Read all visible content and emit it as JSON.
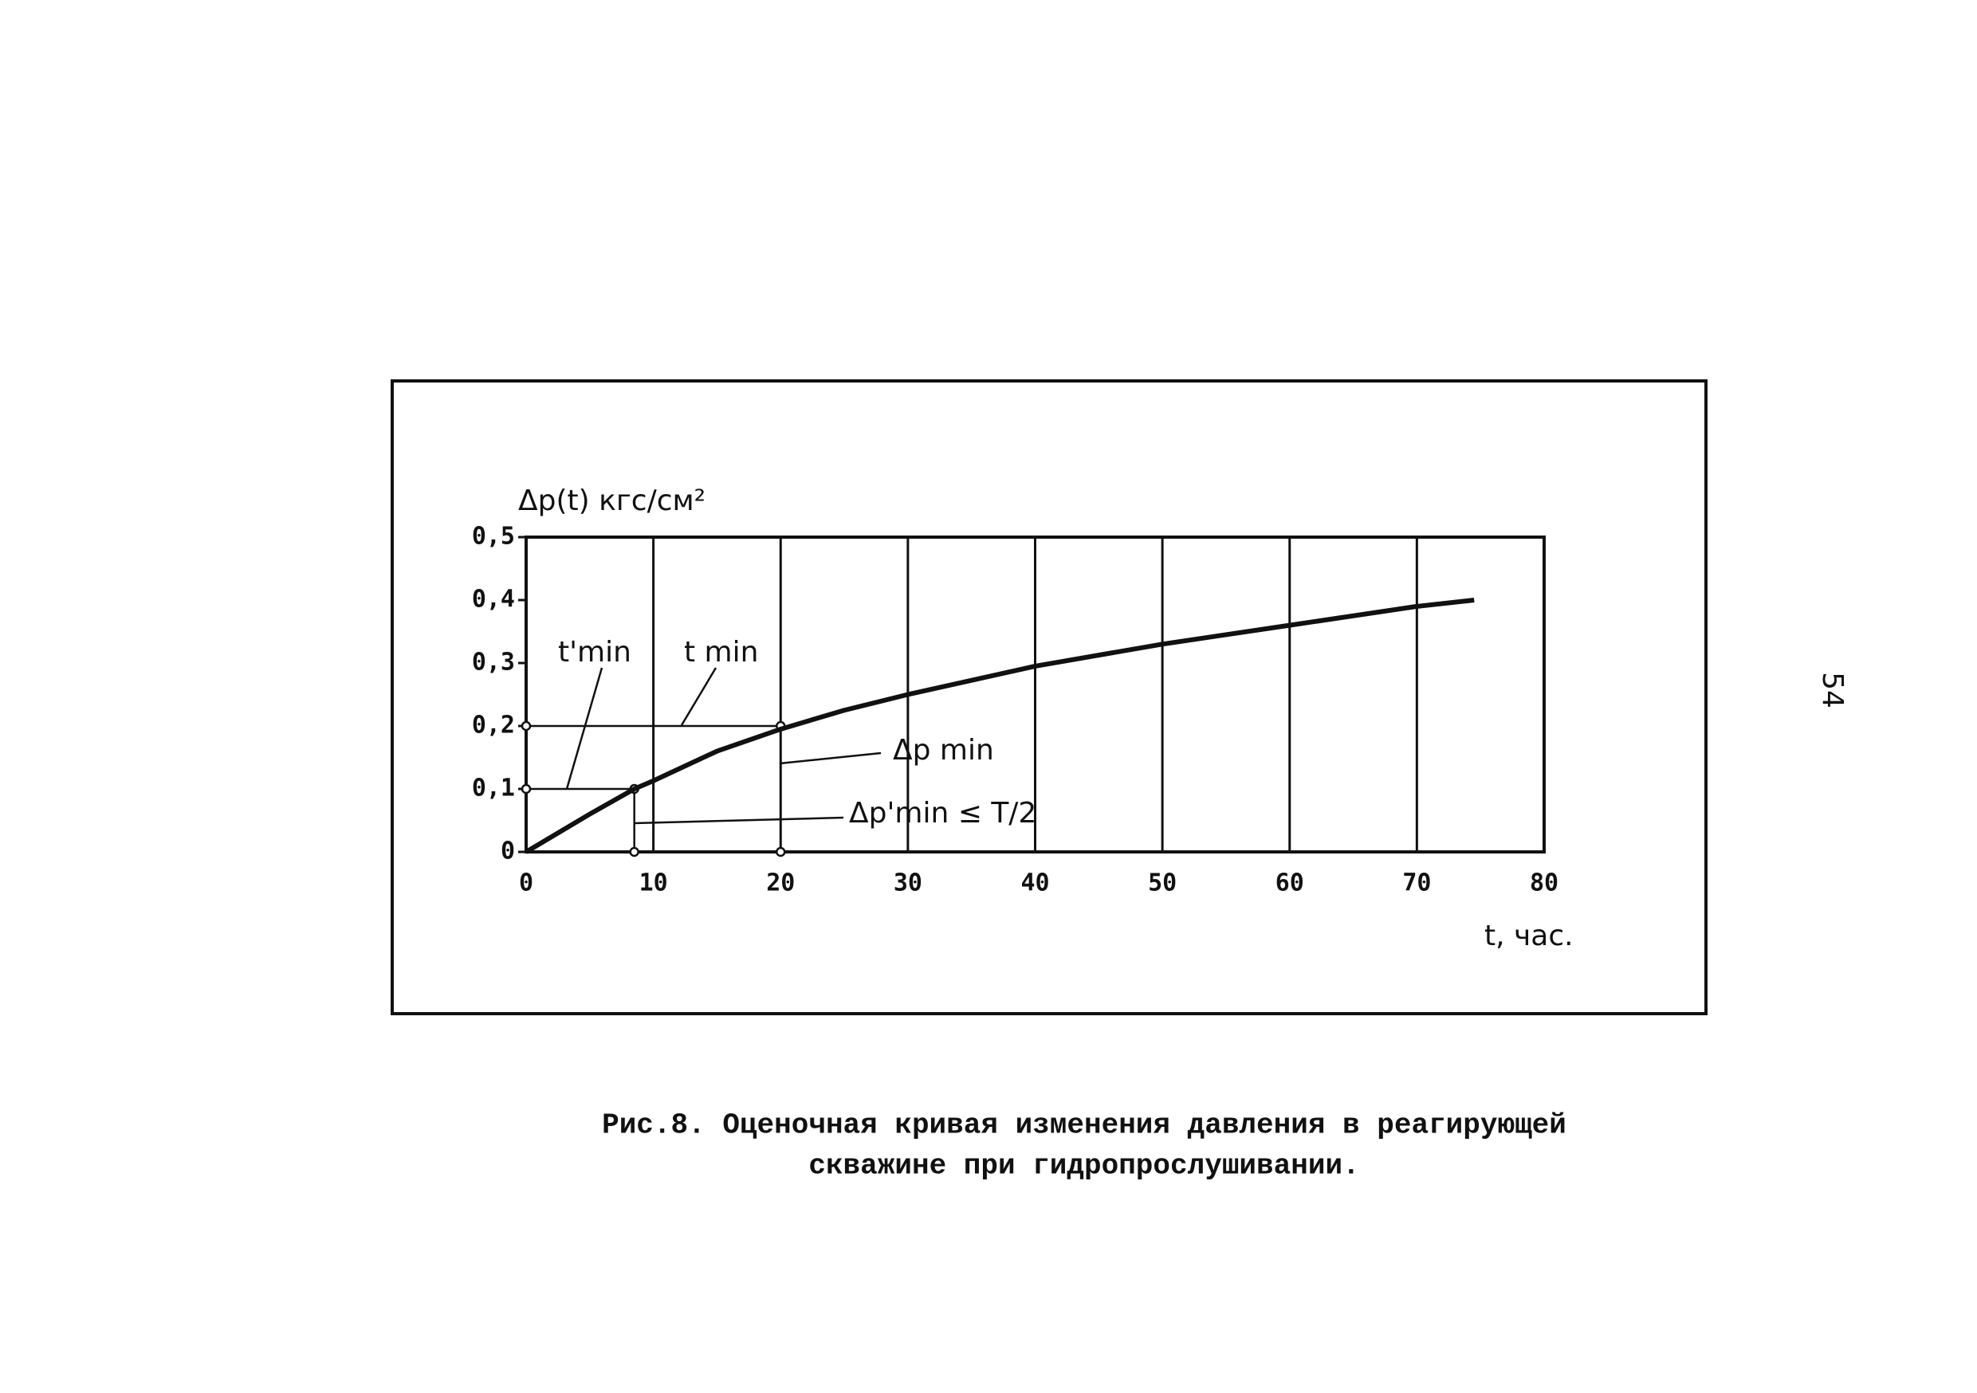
{
  "chart_data": {
    "type": "line",
    "y_label": "Δp(t) кгс/см²",
    "x_label": "t, час.",
    "x": [
      0,
      5,
      8.5,
      10,
      15,
      20,
      25,
      30,
      40,
      50,
      60,
      70,
      74.5
    ],
    "series": [
      {
        "color": "#111111",
        "values": [
          0,
          0.06,
          0.1,
          0.113,
          0.16,
          0.195,
          0.225,
          0.25,
          0.295,
          0.33,
          0.36,
          0.39,
          0.4
        ]
      }
    ],
    "reference_points": [
      {
        "x": 8.5,
        "y": 0.1
      },
      {
        "x": 20,
        "y": 0.2
      }
    ],
    "xlim": [
      0,
      80
    ],
    "xticks": [
      0,
      10,
      20,
      30,
      40,
      50,
      60,
      70,
      80
    ],
    "ylim": [
      0,
      0.5
    ],
    "yticks": [
      {
        "value": 0,
        "label": "0"
      },
      {
        "value": 0.1,
        "label": "0,1"
      },
      {
        "value": 0.2,
        "label": "0,2"
      },
      {
        "value": 0.3,
        "label": "0,3"
      },
      {
        "value": 0.4,
        "label": "0,4"
      },
      {
        "value": 0.5,
        "label": "0,5"
      }
    ],
    "grid": "x",
    "annotations": [
      "t'min",
      "t min",
      "Δp min",
      "Δp'min ≤ T/2"
    ]
  },
  "caption": [
    "Рис.8. Оценочная кривая изменения давления в реагирующей",
    "скважине при гидропрослушивании."
  ],
  "page_number": "54"
}
